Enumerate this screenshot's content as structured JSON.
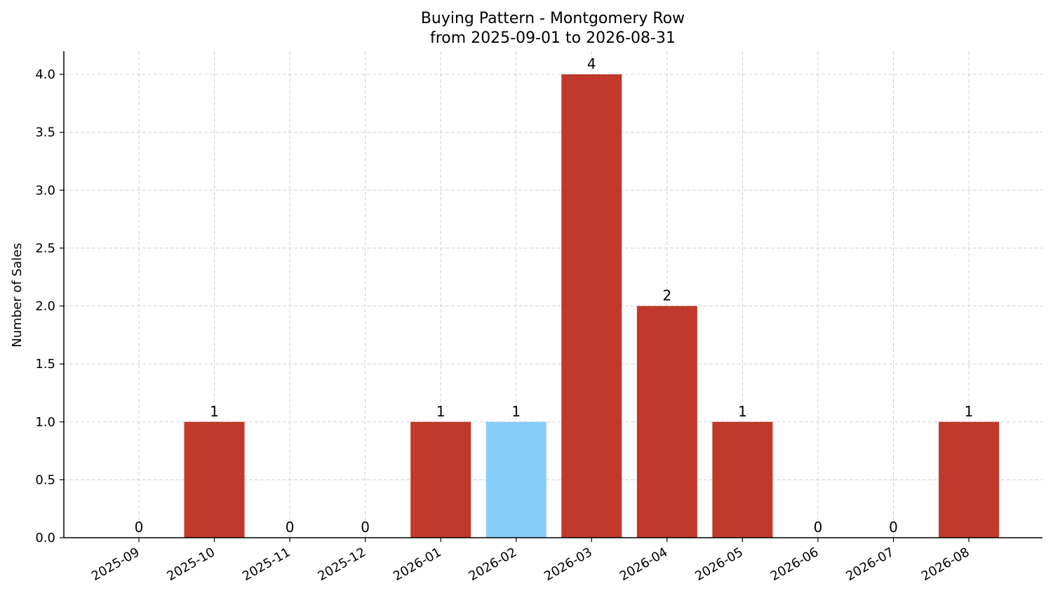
{
  "chart_data": {
    "type": "bar",
    "title": "Buying Pattern - Montgomery Row",
    "subtitle": "from 2025-09-01 to 2026-08-31",
    "xlabel": "",
    "ylabel": "Number of Sales",
    "categories": [
      "2025-09",
      "2025-10",
      "2025-11",
      "2025-12",
      "2026-01",
      "2026-02",
      "2026-03",
      "2026-04",
      "2026-05",
      "2026-06",
      "2026-07",
      "2026-08"
    ],
    "values": [
      0,
      1,
      0,
      0,
      1,
      1,
      4,
      2,
      1,
      0,
      0,
      1
    ],
    "data_labels": [
      "0",
      "1",
      "0",
      "0",
      "1",
      "1",
      "4",
      "2",
      "1",
      "0",
      "0",
      "1"
    ],
    "highlight_index": 5,
    "ylim": [
      0,
      4.2
    ],
    "yticks": [
      0.0,
      0.5,
      1.0,
      1.5,
      2.0,
      2.5,
      3.0,
      3.5,
      4.0
    ],
    "ytick_labels": [
      "0.0",
      "0.5",
      "1.0",
      "1.5",
      "2.0",
      "2.5",
      "3.0",
      "3.5",
      "4.0"
    ],
    "grid": true,
    "colors": {
      "bar": "#c0392b",
      "highlight": "#87cefa"
    }
  }
}
